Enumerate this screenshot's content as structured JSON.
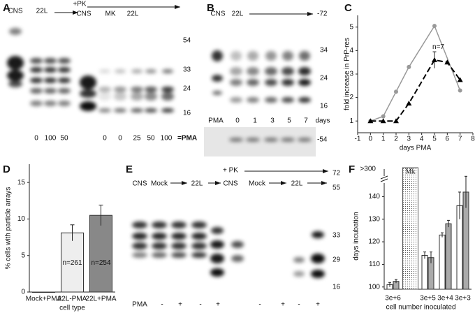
{
  "panel_labels": [
    "A",
    "B",
    "C",
    "D",
    "E",
    "F"
  ],
  "blot_a": {
    "top_labels": [
      "CNS",
      "22L",
      "+PK",
      "CNS",
      "MK",
      "22L"
    ],
    "markers": [
      "54",
      "33",
      "24",
      "16"
    ],
    "pma_labels": [
      "0",
      "100",
      "50",
      "0",
      "0",
      "25",
      "50",
      "100"
    ],
    "pma_suffix": "=PMA"
  },
  "blot_b": {
    "top_labels": [
      "CNS",
      "22L"
    ],
    "markers": [
      "-72",
      "34",
      "24",
      "16"
    ],
    "lower_label": "PMA",
    "days": [
      "0",
      "1",
      "3",
      "5",
      "7"
    ],
    "days_label": "days",
    "lower_marker": "-54"
  },
  "blot_e": {
    "top_labels": [
      "CNS",
      "Mock",
      "22L",
      "CNS",
      "Mock",
      "22L"
    ],
    "pk_label": "+ PK",
    "markers": [
      "72",
      "55",
      "33",
      "29",
      "16"
    ],
    "pma_label": "PMA",
    "pma_signs": [
      "-",
      "+",
      "-",
      "+",
      "-",
      "+",
      "-",
      "+"
    ]
  },
  "chart_data": [
    {
      "type": "line",
      "y_label": "fold increase in PrP-res",
      "x_label": "days PMA",
      "annotation": "n=7",
      "xlim": [
        -1,
        8
      ],
      "ylim": [
        0.5,
        5.5
      ],
      "xticks": [
        -1,
        0,
        1,
        2,
        3,
        4,
        5,
        6,
        7,
        8
      ],
      "yticks": [
        1,
        2,
        3,
        4,
        5
      ],
      "series": [
        {
          "color": "#999999",
          "marker": "circle",
          "dash": false,
          "x": [
            0,
            1,
            2,
            3,
            5,
            7
          ],
          "values": [
            1,
            1.2,
            2.25,
            3.3,
            5.05,
            2.3
          ]
        },
        {
          "color": "#000000",
          "marker": "triangle",
          "dash": true,
          "x": [
            0,
            1,
            2,
            3,
            5,
            6,
            7
          ],
          "values": [
            1,
            1,
            1,
            1.75,
            3.6,
            3.5,
            2.75
          ],
          "errors": [
            null,
            null,
            null,
            null,
            0.35,
            null,
            null
          ]
        }
      ]
    },
    {
      "type": "bar",
      "y_label": "% cells with particle arrays",
      "x_label": "cell type",
      "categories": [
        "Mock+PMA",
        "22L-PMA",
        "22L+PMA"
      ],
      "values": [
        0,
        8.1,
        10.5
      ],
      "errors": [
        0,
        1.1,
        1.4
      ],
      "annotations": [
        null,
        "n=261",
        "n=254"
      ],
      "colors": [
        "#ffffff",
        "#eeeeee",
        "#888888"
      ],
      "ylim": [
        0,
        17.5
      ],
      "yticks": [
        0,
        5,
        10,
        15
      ]
    },
    {
      "type": "grouped_bar",
      "y_label": "days incubation",
      "x_label": "cell number inoculated",
      "categories": [
        "3e+6",
        "3e+5",
        "3e+4",
        "3e+3"
      ],
      "annotation": ">300",
      "band_label": "Mk",
      "series": [
        {
          "color": "#ffffff",
          "values": [
            101,
            114,
            123,
            136
          ],
          "errors": [
            1,
            1.5,
            1,
            6
          ]
        },
        {
          "color": "#aaaaaa",
          "values": [
            102.5,
            113,
            128,
            142
          ],
          "errors": [
            0.8,
            2.5,
            1.5,
            7
          ]
        }
      ],
      "ylim": [
        99,
        146
      ],
      "yticks": [
        100,
        110,
        120,
        130,
        140
      ]
    }
  ]
}
